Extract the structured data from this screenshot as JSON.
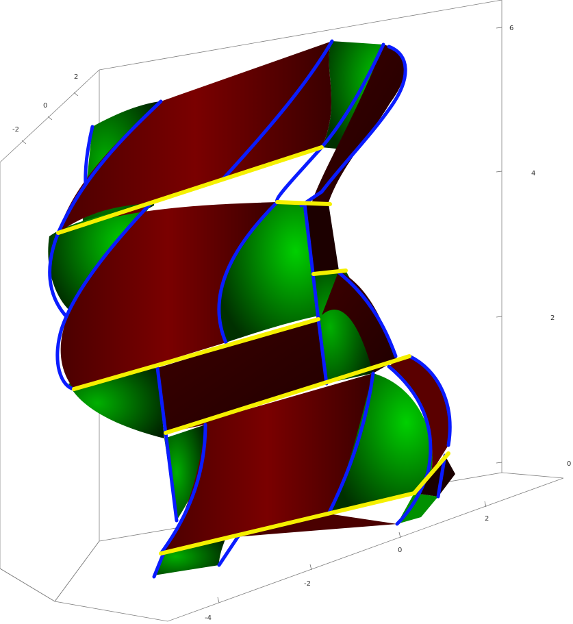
{
  "axes": {
    "left_depth_ticks": [
      "2",
      "0",
      "-2"
    ],
    "vertical_ticks": [
      "6",
      "4",
      "2",
      "0"
    ],
    "bottom_ticks": [
      "2",
      "0",
      "-2",
      "-4"
    ]
  },
  "colors": {
    "surface_red": "#6b0000",
    "surface_green": "#00a000",
    "curve_blue": "#0a1cff",
    "band_yellow": "#f5f000",
    "box_line": "#7f7f7f"
  }
}
